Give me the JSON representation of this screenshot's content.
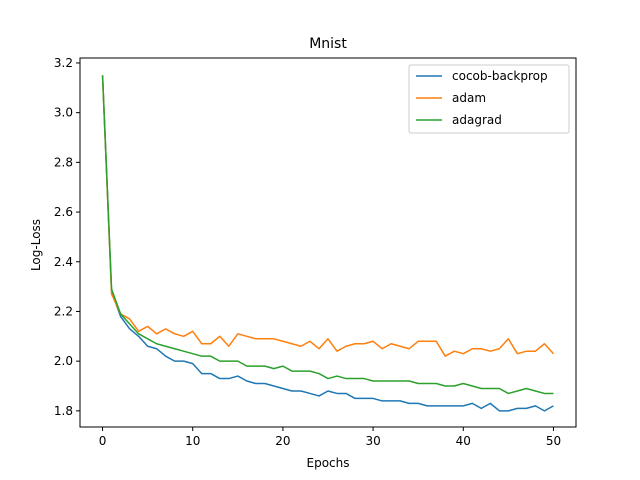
{
  "chart_data": {
    "type": "line",
    "title": "Mnist",
    "xlabel": "Epochs",
    "ylabel": "Log-Loss",
    "xlim": [
      -2.5,
      52.5
    ],
    "ylim": [
      1.735,
      3.22
    ],
    "xticks": [
      0,
      10,
      20,
      30,
      40,
      50
    ],
    "yticks": [
      1.8,
      2.0,
      2.2,
      2.4,
      2.6,
      2.8,
      3.0,
      3.2
    ],
    "grid": false,
    "legend_position": "top-right",
    "x": [
      0,
      1,
      2,
      3,
      4,
      5,
      6,
      7,
      8,
      9,
      10,
      11,
      12,
      13,
      14,
      15,
      16,
      17,
      18,
      19,
      20,
      21,
      22,
      23,
      24,
      25,
      26,
      27,
      28,
      29,
      30,
      31,
      32,
      33,
      34,
      35,
      36,
      37,
      38,
      39,
      40,
      41,
      42,
      43,
      44,
      45,
      46,
      47,
      48,
      49,
      50
    ],
    "series": [
      {
        "name": "cocob-backprop",
        "color": "#1f77b4",
        "values": [
          3.15,
          2.28,
          2.18,
          2.13,
          2.1,
          2.06,
          2.05,
          2.02,
          2.0,
          2.0,
          1.99,
          1.95,
          1.95,
          1.93,
          1.93,
          1.94,
          1.92,
          1.91,
          1.91,
          1.9,
          1.89,
          1.88,
          1.88,
          1.87,
          1.86,
          1.88,
          1.87,
          1.87,
          1.85,
          1.85,
          1.85,
          1.84,
          1.84,
          1.84,
          1.83,
          1.83,
          1.82,
          1.82,
          1.82,
          1.82,
          1.82,
          1.83,
          1.81,
          1.83,
          1.8,
          1.8,
          1.81,
          1.81,
          1.82,
          1.8,
          1.82
        ]
      },
      {
        "name": "adam",
        "color": "#ff7f0e",
        "values": [
          3.15,
          2.27,
          2.19,
          2.17,
          2.12,
          2.14,
          2.11,
          2.13,
          2.11,
          2.1,
          2.12,
          2.07,
          2.07,
          2.1,
          2.06,
          2.11,
          2.1,
          2.09,
          2.09,
          2.09,
          2.08,
          2.07,
          2.06,
          2.08,
          2.05,
          2.09,
          2.04,
          2.06,
          2.07,
          2.07,
          2.08,
          2.05,
          2.07,
          2.06,
          2.05,
          2.08,
          2.08,
          2.08,
          2.02,
          2.04,
          2.03,
          2.05,
          2.05,
          2.04,
          2.05,
          2.09,
          2.03,
          2.04,
          2.04,
          2.07,
          2.03
        ]
      },
      {
        "name": "adagrad",
        "color": "#2ca02c",
        "values": [
          3.15,
          2.29,
          2.19,
          2.15,
          2.11,
          2.09,
          2.07,
          2.06,
          2.05,
          2.04,
          2.03,
          2.02,
          2.02,
          2.0,
          2.0,
          2.0,
          1.98,
          1.98,
          1.98,
          1.97,
          1.98,
          1.96,
          1.96,
          1.96,
          1.95,
          1.93,
          1.94,
          1.93,
          1.93,
          1.93,
          1.92,
          1.92,
          1.92,
          1.92,
          1.92,
          1.91,
          1.91,
          1.91,
          1.9,
          1.9,
          1.91,
          1.9,
          1.89,
          1.89,
          1.89,
          1.87,
          1.88,
          1.89,
          1.88,
          1.87,
          1.87
        ]
      }
    ]
  }
}
